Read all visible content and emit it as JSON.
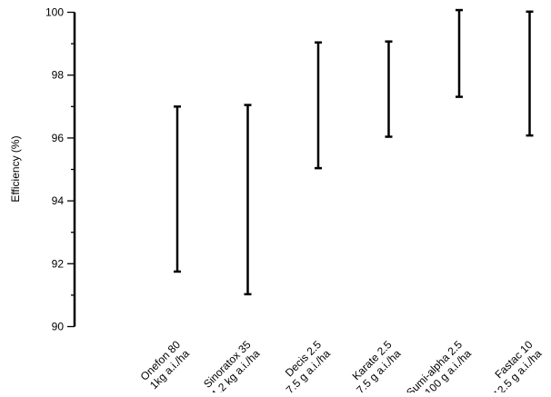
{
  "chart_data": {
    "type": "range-bar",
    "title": "",
    "xlabel": "",
    "ylabel": "Efficiency (%)",
    "ylim": [
      90,
      100
    ],
    "yticks": [
      90,
      92,
      94,
      96,
      98,
      100
    ],
    "grid": false,
    "categories": [
      [
        "Onefon 80",
        "1kg a.i./ha"
      ],
      [
        "Sinoratox 35",
        "1.2 kg a.i./ha"
      ],
      [
        "Decis 2.5",
        "7.5 g a.i./ha"
      ],
      [
        "Karate 2.5",
        "7.5 g a.i./ha"
      ],
      [
        "Sumi-alpha 2.5",
        "100 g a.i./ha"
      ],
      [
        "Fastac 10",
        "12.5 g a.i./ha"
      ]
    ],
    "low": [
      91.75,
      91.03,
      95.04,
      96.04,
      97.31,
      96.08
    ],
    "high": [
      97.0,
      97.05,
      99.04,
      99.07,
      100.07,
      100.02
    ],
    "color": "#000000"
  }
}
